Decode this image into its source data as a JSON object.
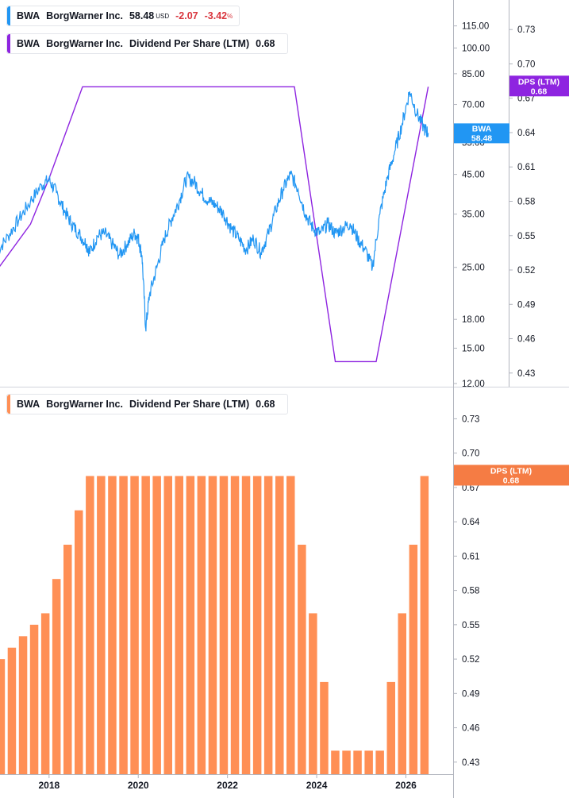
{
  "legends": {
    "price": {
      "ticker": "BWA",
      "name": "BorgWarner Inc.",
      "last": "58.48",
      "currency": "USD",
      "change": "-2.07",
      "change_pct": "-3.42",
      "pct_sign": "%"
    },
    "dps_top": {
      "ticker": "BWA",
      "name": "BorgWarner Inc.",
      "metric": "Dividend Per Share (LTM)",
      "value": "0.68"
    },
    "dps_bottom": {
      "ticker": "BWA",
      "name": "BorgWarner Inc.",
      "metric": "Dividend Per Share (LTM)",
      "value": "0.68"
    }
  },
  "tags": {
    "price_label": "BWA",
    "price_value": "58.48",
    "dps_top_label": "DPS (LTM)",
    "dps_top_value": "0.68",
    "dps_bottom_label": "DPS (LTM)",
    "dps_bottom_value": "0.68"
  },
  "colors": {
    "price": "#2196f3",
    "dps_line": "#8e24e0",
    "dps_bar": "#ff8f55",
    "dps_tag": "#f57c44",
    "axis": "#b2b5be",
    "text": "#131722",
    "negative": "#d9363e"
  },
  "chart_data": [
    {
      "type": "line",
      "series": [
        {
          "name": "BorgWarner Inc.",
          "axis": "price",
          "points": [
            [
              "2016-11",
              27.5
            ],
            [
              "2017-02",
              30.5
            ],
            [
              "2017-05",
              34
            ],
            [
              "2017-08",
              38
            ],
            [
              "2017-11",
              42
            ],
            [
              "2018-01",
              43.5
            ],
            [
              "2018-03",
              40
            ],
            [
              "2018-05",
              36
            ],
            [
              "2018-07",
              33
            ],
            [
              "2018-09",
              31
            ],
            [
              "2018-11",
              29
            ],
            [
              "2018-12",
              27.5
            ],
            [
              "2019-02",
              30.5
            ],
            [
              "2019-04",
              31
            ],
            [
              "2019-06",
              29
            ],
            [
              "2019-08",
              27
            ],
            [
              "2019-10",
              29
            ],
            [
              "2019-12",
              31
            ],
            [
              "2020-01",
              30
            ],
            [
              "2020-02",
              27
            ],
            [
              "2020-03",
              17
            ],
            [
              "2020-04",
              21
            ],
            [
              "2020-06",
              25
            ],
            [
              "2020-08",
              30
            ],
            [
              "2020-10",
              34
            ],
            [
              "2020-12",
              38
            ],
            [
              "2021-02",
              44
            ],
            [
              "2021-04",
              43
            ],
            [
              "2021-06",
              40
            ],
            [
              "2021-08",
              38
            ],
            [
              "2021-10",
              37
            ],
            [
              "2021-12",
              35
            ],
            [
              "2022-02",
              32
            ],
            [
              "2022-04",
              30
            ],
            [
              "2022-06",
              28
            ],
            [
              "2022-08",
              30
            ],
            [
              "2022-10",
              27.5
            ],
            [
              "2022-12",
              31
            ],
            [
              "2023-02",
              36
            ],
            [
              "2023-04",
              41
            ],
            [
              "2023-06",
              45
            ],
            [
              "2023-08",
              41
            ],
            [
              "2023-10",
              35
            ],
            [
              "2023-12",
              32
            ],
            [
              "2024-02",
              31
            ],
            [
              "2024-04",
              33
            ],
            [
              "2024-06",
              31
            ],
            [
              "2024-08",
              32
            ],
            [
              "2024-10",
              33
            ],
            [
              "2024-12",
              30
            ],
            [
              "2025-02",
              28
            ],
            [
              "2025-04",
              25
            ],
            [
              "2025-06",
              35
            ],
            [
              "2025-08",
              44
            ],
            [
              "2025-10",
              52
            ],
            [
              "2025-12",
              62
            ],
            [
              "2026-02",
              76
            ],
            [
              "2026-04",
              66
            ],
            [
              "2026-06",
              60
            ],
            [
              "2026-07",
              58.48
            ]
          ]
        },
        {
          "name": "Dividend Per Share (LTM)",
          "axis": "dps",
          "points": [
            [
              "2016-11",
              0.52
            ],
            [
              "2017-08",
              0.56
            ],
            [
              "2018-01",
              0.6
            ],
            [
              "2018-10",
              0.68
            ],
            [
              "2023-07",
              0.68
            ],
            [
              "2024-06",
              0.44
            ],
            [
              "2025-05",
              0.44
            ],
            [
              "2026-07",
              0.68
            ]
          ]
        }
      ],
      "price_axis": {
        "scale": "log",
        "range": [
          12,
          125
        ],
        "ticks": [
          "115.00",
          "100.00",
          "85.00",
          "70.00",
          "55.00",
          "45.00",
          "35.00",
          "25.00",
          "18.00",
          "15.00",
          "12.00"
        ]
      },
      "dps_axis": {
        "range": [
          0.425,
          0.735
        ],
        "ticks": [
          "0.73",
          "0.70",
          "0.67",
          "0.64",
          "0.61",
          "0.58",
          "0.55",
          "0.52",
          "0.49",
          "0.46",
          "0.43"
        ]
      }
    },
    {
      "type": "bar",
      "series": [
        {
          "name": "Dividend Per Share (LTM)",
          "x": [
            "2016-12",
            "2017-03",
            "2017-06",
            "2017-09",
            "2017-12",
            "2018-03",
            "2018-06",
            "2018-09",
            "2018-12",
            "2019-03",
            "2019-06",
            "2019-09",
            "2019-12",
            "2020-03",
            "2020-06",
            "2020-09",
            "2020-12",
            "2021-03",
            "2021-06",
            "2021-09",
            "2021-12",
            "2022-03",
            "2022-06",
            "2022-09",
            "2022-12",
            "2023-03",
            "2023-06",
            "2023-09",
            "2023-12",
            "2024-03",
            "2024-06",
            "2024-09",
            "2024-12",
            "2025-03",
            "2025-06",
            "2025-09",
            "2025-12",
            "2026-03",
            "2026-06"
          ],
          "values": [
            0.52,
            0.53,
            0.54,
            0.55,
            0.56,
            0.59,
            0.62,
            0.65,
            0.68,
            0.68,
            0.68,
            0.68,
            0.68,
            0.68,
            0.68,
            0.68,
            0.68,
            0.68,
            0.68,
            0.68,
            0.68,
            0.68,
            0.68,
            0.68,
            0.68,
            0.68,
            0.68,
            0.62,
            0.56,
            0.5,
            0.44,
            0.44,
            0.44,
            0.44,
            0.44,
            0.5,
            0.56,
            0.62,
            0.68
          ]
        }
      ],
      "y_axis": {
        "range": [
          0.425,
          0.74
        ],
        "ticks": [
          "0.73",
          "0.70",
          "0.67",
          "0.64",
          "0.61",
          "0.58",
          "0.55",
          "0.52",
          "0.49",
          "0.46",
          "0.43"
        ]
      },
      "x_ticks": [
        "2018",
        "2020",
        "2022",
        "2024",
        "2026"
      ]
    }
  ]
}
